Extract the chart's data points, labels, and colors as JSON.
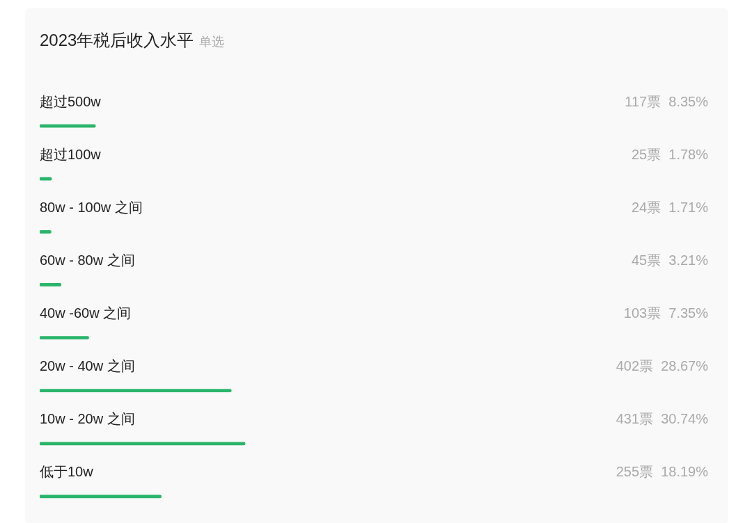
{
  "chart_data": {
    "type": "bar",
    "orientation": "horizontal",
    "title": "2023年税后收入水平",
    "subtitle": "单选",
    "categories": [
      "超过500w",
      "超过100w",
      "80w - 100w 之间",
      "60w - 80w 之间",
      "40w -60w 之间",
      "20w - 40w 之间",
      "10w - 20w 之间",
      "低于10w"
    ],
    "values": [
      8.35,
      1.78,
      1.71,
      3.21,
      7.35,
      28.67,
      30.74,
      18.19
    ],
    "value_labels": [
      "117票  8.35%",
      "25票  1.78%",
      "24票  1.71%",
      "45票  3.21%",
      "103票  7.35%",
      "402票  28.67%",
      "431票  30.74%",
      "255票  18.19%"
    ],
    "color": "#2bb56b",
    "tick_labels": false
  }
}
